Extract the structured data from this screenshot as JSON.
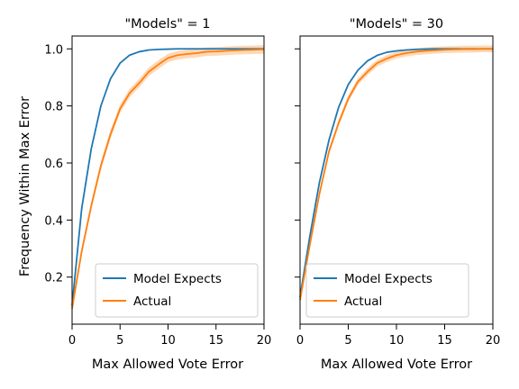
{
  "chart_data": {
    "type": "line",
    "ylabel": "Frequency Within Max Error",
    "xlim": [
      0,
      20
    ],
    "ylim": [
      0.035,
      1.045
    ],
    "xticks": [
      "0",
      "5",
      "10",
      "15",
      "20"
    ],
    "yticks": [
      "0.2",
      "0.4",
      "0.6",
      "0.8",
      "1.0"
    ],
    "grid": false,
    "legend_position": "lower-right",
    "colors": {
      "expects": "#1f77b4",
      "actual": "#ff7f0e"
    },
    "panels": [
      {
        "title": "\"Models\" = 1",
        "xlabel": "Max Allowed Vote Error",
        "legend": [
          "Model Expects",
          "Actual"
        ],
        "series": [
          {
            "name": "Model Expects",
            "x": [
              0,
              1,
              2,
              3,
              4,
              5,
              6,
              7,
              8,
              9,
              10,
              11,
              12,
              13,
              14,
              15,
              16,
              17,
              18,
              19,
              20
            ],
            "y": [
              0.1,
              0.44,
              0.65,
              0.8,
              0.895,
              0.95,
              0.978,
              0.99,
              0.996,
              0.998,
              0.999,
              1.0,
              1.0,
              1.0,
              1.0,
              1.0,
              1.0,
              1.0,
              1.0,
              1.0,
              1.0
            ]
          },
          {
            "name": "Actual",
            "x": [
              0,
              1,
              2,
              3,
              4,
              5,
              6,
              7,
              8,
              9,
              10,
              11,
              12,
              13,
              14,
              15,
              16,
              17,
              18,
              19,
              20
            ],
            "y": [
              0.09,
              0.29,
              0.45,
              0.59,
              0.7,
              0.79,
              0.845,
              0.88,
              0.92,
              0.945,
              0.968,
              0.978,
              0.982,
              0.985,
              0.99,
              0.991,
              0.993,
              0.995,
              0.996,
              0.997,
              0.998
            ],
            "band": 0.015
          }
        ]
      },
      {
        "title": "\"Models\" = 30",
        "xlabel": "Max Allowed Vote Error",
        "legend": [
          "Model Expects",
          "Actual"
        ],
        "series": [
          {
            "name": "Model Expects",
            "x": [
              0,
              1,
              2,
              3,
              4,
              5,
              6,
              7,
              8,
              9,
              10,
              11,
              12,
              13,
              14,
              15,
              16,
              17,
              18,
              19,
              20
            ],
            "y": [
              0.13,
              0.34,
              0.53,
              0.68,
              0.795,
              0.875,
              0.925,
              0.958,
              0.977,
              0.988,
              0.993,
              0.996,
              0.998,
              0.999,
              1.0,
              1.0,
              1.0,
              1.0,
              1.0,
              1.0,
              1.0
            ]
          },
          {
            "name": "Actual",
            "x": [
              0,
              1,
              2,
              3,
              4,
              5,
              6,
              7,
              8,
              9,
              10,
              11,
              12,
              13,
              14,
              15,
              16,
              17,
              18,
              19,
              20
            ],
            "y": [
              0.12,
              0.31,
              0.49,
              0.64,
              0.74,
              0.825,
              0.885,
              0.92,
              0.95,
              0.966,
              0.978,
              0.985,
              0.99,
              0.993,
              0.995,
              0.997,
              0.998,
              0.999,
              0.999,
              1.0,
              1.0
            ],
            "band": 0.012
          }
        ]
      }
    ]
  }
}
